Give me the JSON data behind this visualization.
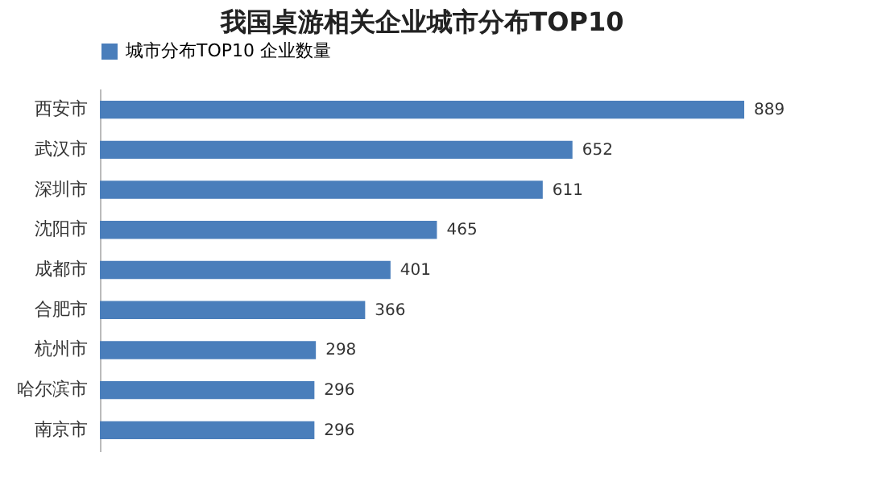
{
  "chart_data": {
    "type": "bar",
    "orientation": "horizontal",
    "title": "我国桌游相关企业城市分布TOP10",
    "categories": [
      "西安市",
      "武汉市",
      "深圳市",
      "沈阳市",
      "成都市",
      "合肥市",
      "杭州市",
      "哈尔滨市",
      "南京市"
    ],
    "series": [
      {
        "name": "城市分布TOP10 企业数量",
        "color": "#4a7ebb",
        "values": [
          889,
          652,
          611,
          465,
          401,
          366,
          298,
          296,
          296
        ]
      }
    ],
    "data_labels": true,
    "legend": "top",
    "grid": false
  }
}
